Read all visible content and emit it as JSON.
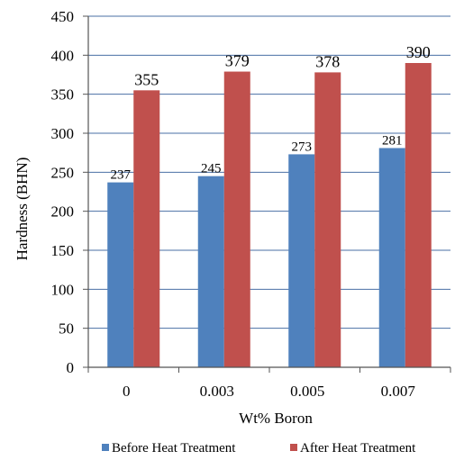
{
  "chart_data": {
    "type": "bar",
    "title": "",
    "xlabel": "Wt% Boron",
    "ylabel": "Hardness (BHN)",
    "categories": [
      "0",
      "0.003",
      "0.005",
      "0.007"
    ],
    "series": [
      {
        "name": "Before Heat Treatment",
        "color": "#4f81bd",
        "values": [
          237,
          245,
          273,
          281
        ]
      },
      {
        "name": "After Heat Treatment",
        "color": "#c0504d",
        "values": [
          355,
          379,
          378,
          390
        ]
      }
    ],
    "ylim": [
      0,
      450
    ],
    "yticks": [
      0,
      50,
      100,
      150,
      200,
      250,
      300,
      350,
      400,
      450
    ],
    "grid": true,
    "legend_position": "bottom"
  }
}
